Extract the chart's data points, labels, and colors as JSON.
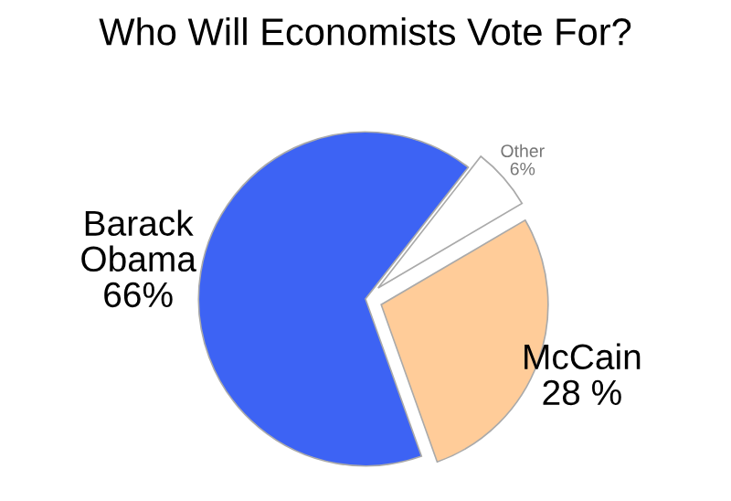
{
  "chart_data": {
    "type": "pie",
    "title": "Who Will Economists Vote For?",
    "categories": [
      "Barack\nObama",
      "McCain",
      "Other"
    ],
    "values": [
      66,
      28,
      6
    ],
    "value_labels": [
      "66%",
      "28 %",
      "6%"
    ],
    "colors": [
      "#3d63f4",
      "#ffcc99",
      "#ffffff"
    ]
  }
}
